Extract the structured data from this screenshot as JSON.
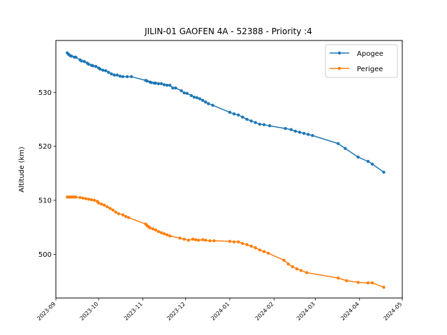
{
  "chart_data": {
    "type": "line",
    "title": "JILIN-01 GAOFEN 4A - 52388 - Priority :4",
    "xlabel": "",
    "ylabel": "Altitude (km)",
    "x_type": "date",
    "xlim": [
      "2023-09-01",
      "2024-05-01"
    ],
    "ylim": [
      491.9,
      539.6
    ],
    "x_ticks": [
      "2023-09",
      "2023-10",
      "2023-11",
      "2023-12",
      "2024-01",
      "2024-02",
      "2024-03",
      "2024-04",
      "2024-05"
    ],
    "y_ticks": [
      500,
      510,
      520,
      530
    ],
    "legend_position": "upper-right",
    "grid": false,
    "series": [
      {
        "name": "Apogee",
        "color": "#1f77b4",
        "marker": "circle",
        "points": [
          [
            "2023-09-09",
            537.3
          ],
          [
            "2023-09-10",
            537.0
          ],
          [
            "2023-09-11",
            536.8
          ],
          [
            "2023-09-12",
            536.7
          ],
          [
            "2023-09-14",
            536.5
          ],
          [
            "2023-09-15",
            536.5
          ],
          [
            "2023-09-18",
            536.0
          ],
          [
            "2023-09-19",
            535.8
          ],
          [
            "2023-09-21",
            535.7
          ],
          [
            "2023-09-23",
            535.4
          ],
          [
            "2023-09-24",
            535.2
          ],
          [
            "2023-09-26",
            535.0
          ],
          [
            "2023-09-27",
            534.9
          ],
          [
            "2023-09-29",
            534.8
          ],
          [
            "2023-10-01",
            534.5
          ],
          [
            "2023-10-02",
            534.3
          ],
          [
            "2023-10-04",
            534.1
          ],
          [
            "2023-10-06",
            534.0
          ],
          [
            "2023-10-08",
            533.7
          ],
          [
            "2023-10-10",
            533.4
          ],
          [
            "2023-10-12",
            533.2
          ],
          [
            "2023-10-14",
            533.2
          ],
          [
            "2023-10-16",
            533.0
          ],
          [
            "2023-10-18",
            532.9
          ],
          [
            "2023-10-21",
            532.9
          ],
          [
            "2023-10-24",
            532.9
          ],
          [
            "2023-11-03",
            532.2
          ],
          [
            "2023-11-04",
            532.1
          ],
          [
            "2023-11-06",
            531.9
          ],
          [
            "2023-11-07",
            531.8
          ],
          [
            "2023-11-09",
            531.7
          ],
          [
            "2023-11-10",
            531.7
          ],
          [
            "2023-11-12",
            531.6
          ],
          [
            "2023-11-14",
            531.6
          ],
          [
            "2023-11-16",
            531.4
          ],
          [
            "2023-11-18",
            531.3
          ],
          [
            "2023-11-20",
            531.3
          ],
          [
            "2023-11-22",
            530.8
          ],
          [
            "2023-11-24",
            530.8
          ],
          [
            "2023-11-28",
            530.3
          ],
          [
            "2023-11-30",
            529.9
          ],
          [
            "2023-12-02",
            529.8
          ],
          [
            "2023-12-05",
            529.4
          ],
          [
            "2023-12-07",
            529.1
          ],
          [
            "2023-12-09",
            529.0
          ],
          [
            "2023-12-11",
            528.8
          ],
          [
            "2023-12-13",
            528.5
          ],
          [
            "2023-12-15",
            528.2
          ],
          [
            "2023-12-17",
            527.9
          ],
          [
            "2023-12-20",
            527.6
          ],
          [
            "2024-01-01",
            526.3
          ],
          [
            "2024-01-04",
            526.0
          ],
          [
            "2024-01-07",
            525.8
          ],
          [
            "2024-01-10",
            525.4
          ],
          [
            "2024-01-13",
            525.0
          ],
          [
            "2024-01-16",
            524.7
          ],
          [
            "2024-01-19",
            524.4
          ],
          [
            "2024-01-22",
            524.1
          ],
          [
            "2024-01-25",
            524.0
          ],
          [
            "2024-01-29",
            523.8
          ],
          [
            "2024-02-09",
            523.3
          ],
          [
            "2024-02-13",
            523.1
          ],
          [
            "2024-02-16",
            522.8
          ],
          [
            "2024-02-19",
            522.6
          ],
          [
            "2024-02-22",
            522.4
          ],
          [
            "2024-02-25",
            522.2
          ],
          [
            "2024-02-28",
            522.0
          ],
          [
            "2024-03-17",
            520.5
          ],
          [
            "2024-03-22",
            519.6
          ],
          [
            "2024-03-31",
            518.0
          ],
          [
            "2024-04-07",
            517.2
          ],
          [
            "2024-04-10",
            516.7
          ],
          [
            "2024-04-18",
            515.2
          ]
        ]
      },
      {
        "name": "Perigee",
        "color": "#ff7f0e",
        "marker": "circle",
        "points": [
          [
            "2023-09-09",
            510.6
          ],
          [
            "2023-09-10",
            510.6
          ],
          [
            "2023-09-11",
            510.6
          ],
          [
            "2023-09-12",
            510.6
          ],
          [
            "2023-09-13",
            510.6
          ],
          [
            "2023-09-14",
            510.6
          ],
          [
            "2023-09-15",
            510.6
          ],
          [
            "2023-09-18",
            510.5
          ],
          [
            "2023-09-20",
            510.4
          ],
          [
            "2023-09-22",
            510.3
          ],
          [
            "2023-09-24",
            510.2
          ],
          [
            "2023-09-26",
            510.1
          ],
          [
            "2023-09-28",
            510.0
          ],
          [
            "2023-09-30",
            509.8
          ],
          [
            "2023-10-01",
            509.5
          ],
          [
            "2023-10-03",
            509.3
          ],
          [
            "2023-10-05",
            509.1
          ],
          [
            "2023-10-07",
            508.8
          ],
          [
            "2023-10-09",
            508.5
          ],
          [
            "2023-10-11",
            508.2
          ],
          [
            "2023-10-13",
            507.8
          ],
          [
            "2023-10-15",
            507.5
          ],
          [
            "2023-10-18",
            507.3
          ],
          [
            "2023-10-20",
            507.0
          ],
          [
            "2023-10-22",
            506.8
          ],
          [
            "2023-11-03",
            505.6
          ],
          [
            "2023-11-04",
            505.3
          ],
          [
            "2023-11-05",
            505.1
          ],
          [
            "2023-11-06",
            504.9
          ],
          [
            "2023-11-08",
            504.7
          ],
          [
            "2023-11-10",
            504.5
          ],
          [
            "2023-11-12",
            504.2
          ],
          [
            "2023-11-14",
            504.0
          ],
          [
            "2023-11-16",
            503.8
          ],
          [
            "2023-11-18",
            503.6
          ],
          [
            "2023-11-20",
            503.4
          ],
          [
            "2023-11-27",
            503.0
          ],
          [
            "2023-11-30",
            502.8
          ],
          [
            "2023-12-03",
            502.6
          ],
          [
            "2023-12-06",
            502.8
          ],
          [
            "2023-12-08",
            502.7
          ],
          [
            "2023-12-10",
            502.6
          ],
          [
            "2023-12-13",
            502.7
          ],
          [
            "2023-12-15",
            502.6
          ],
          [
            "2023-12-18",
            502.5
          ],
          [
            "2023-12-21",
            502.5
          ],
          [
            "2024-01-01",
            502.4
          ],
          [
            "2024-01-04",
            502.3
          ],
          [
            "2024-01-07",
            502.3
          ],
          [
            "2024-01-10",
            502.0
          ],
          [
            "2024-01-13",
            501.8
          ],
          [
            "2024-01-16",
            501.5
          ],
          [
            "2024-01-19",
            501.2
          ],
          [
            "2024-01-22",
            500.8
          ],
          [
            "2024-01-25",
            500.5
          ],
          [
            "2024-01-28",
            500.2
          ],
          [
            "2024-02-08",
            498.9
          ],
          [
            "2024-02-11",
            498.2
          ],
          [
            "2024-02-14",
            497.7
          ],
          [
            "2024-02-17",
            497.3
          ],
          [
            "2024-02-20",
            497.0
          ],
          [
            "2024-02-24",
            496.6
          ],
          [
            "2024-03-17",
            495.6
          ],
          [
            "2024-03-23",
            495.1
          ],
          [
            "2024-03-31",
            494.8
          ],
          [
            "2024-04-07",
            494.7
          ],
          [
            "2024-04-10",
            494.7
          ],
          [
            "2024-04-18",
            493.9
          ]
        ]
      }
    ]
  }
}
